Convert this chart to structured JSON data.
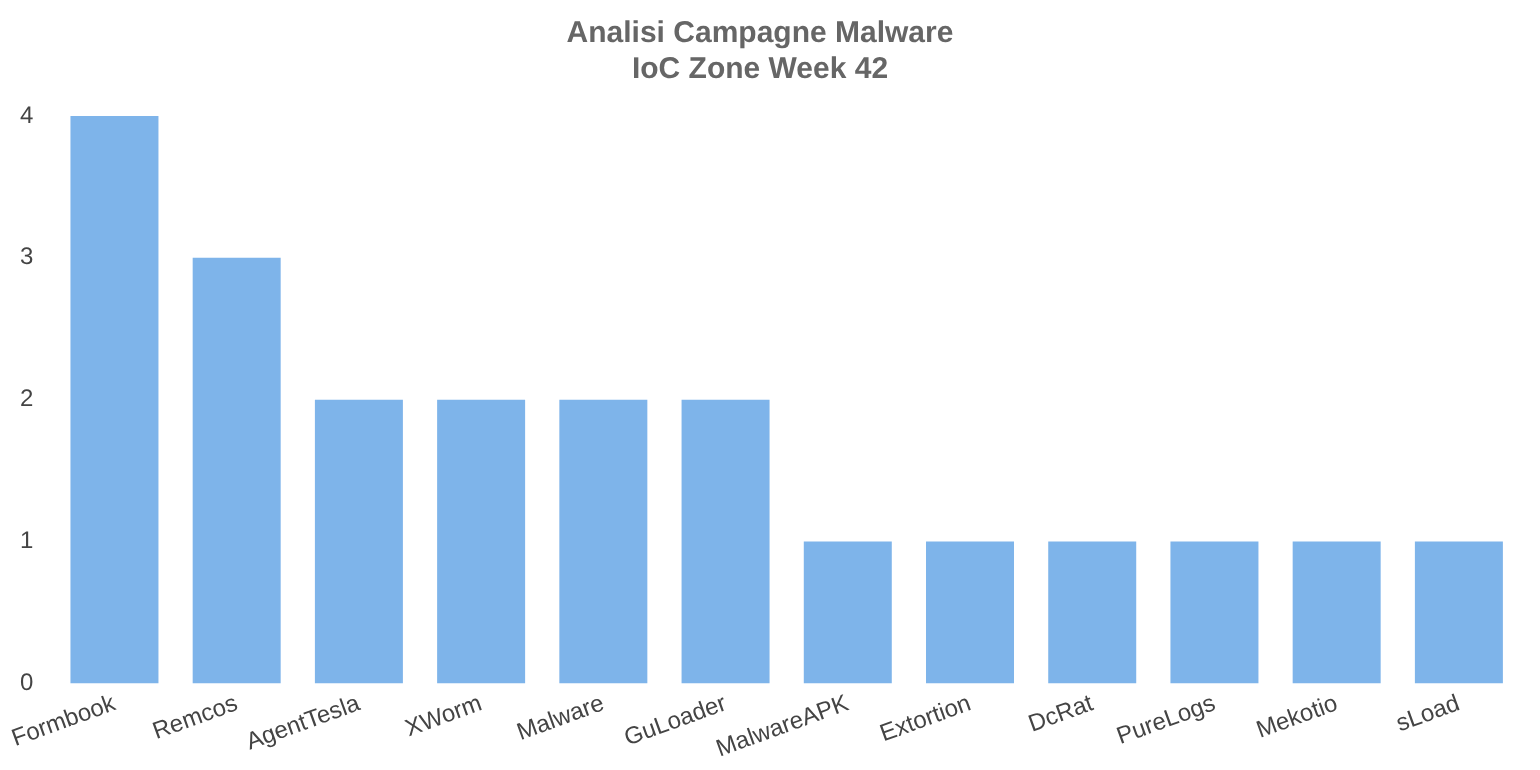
{
  "chart_data": {
    "type": "bar",
    "title": "Analisi Campagne Malware",
    "subtitle": "IoC Zone Week 42",
    "categories": [
      "Formbook",
      "Remcos",
      "AgentTesla",
      "XWorm",
      "Malware",
      "GuLoader",
      "MalwareAPK",
      "Extortion",
      "DcRat",
      "PureLogs",
      "Mekotio",
      "sLoad"
    ],
    "values": [
      4,
      3,
      2,
      2,
      2,
      2,
      1,
      1,
      1,
      1,
      1,
      1
    ],
    "color": "#7eb4ea",
    "ylim": [
      0,
      4
    ],
    "yticks": [
      0,
      1,
      2,
      3,
      4
    ],
    "grid": false,
    "legend": false
  }
}
